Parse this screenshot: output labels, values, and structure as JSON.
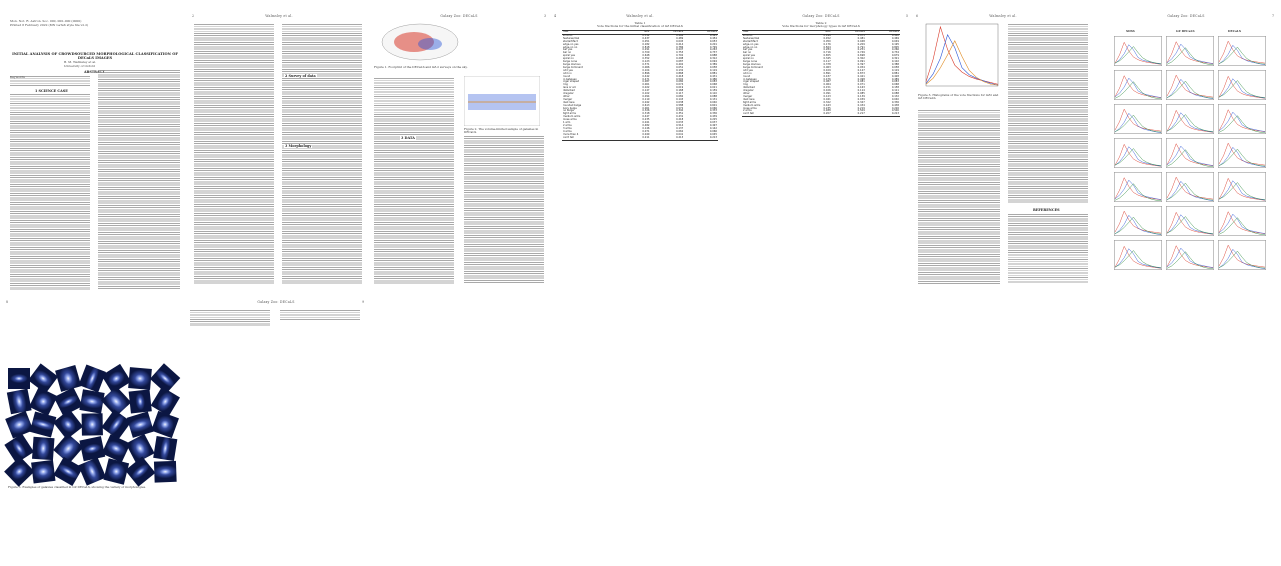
{
  "pages": [
    {
      "header": "",
      "number": "",
      "caption": ""
    },
    {
      "header": "Walmsley et al.",
      "number": "2"
    },
    {
      "header": "Galaxy Zoo: DECaLS",
      "number": "3"
    },
    {
      "header": "Walmsley et al.",
      "number": "4"
    },
    {
      "header": "Galaxy Zoo: DECaLS",
      "number": "5"
    },
    {
      "header": "Walmsley et al.",
      "number": "6"
    },
    {
      "header": "Galaxy Zoo: DECaLS",
      "number": "7"
    },
    {
      "header": "Walmsley et al.",
      "number": "8"
    },
    {
      "header": "Galaxy Zoo: DECaLS",
      "number": "9"
    }
  ],
  "page1": {
    "preprint": "Mon. Not. R. Astron. Soc. 000, 000–000 (0000)",
    "printed": "Printed 6 February 2022 (MN LaTeX style file v2.2)",
    "title": "INITIAL ANALYSIS OF CROWDSOURCED MORPHOLOGICAL CLASSIFICATION OF DECaLS IMAGES",
    "author": "B. M. Walmsley et al.",
    "affiliation": "University of Oxford",
    "abstract_label": "ABSTRACT",
    "keywords_label": "Keywords",
    "section1": "1 SCIENCE CASE"
  },
  "page2": {
    "section2": "2 Survey of data",
    "section3": "3 Morphology",
    "list": [
      "How does the transition between",
      "What is the contribution of",
      "Do the galaxy morphologies change",
      "What about those galaxies"
    ]
  },
  "page3": {
    "fig_caption": "Figure 1. Footprint of the DECaLS and GZ-2 surveys on the sky.",
    "fig2_caption": "Figure 2. The volume-limited sample of galaxies in DECaLS.",
    "section": "3 DATA"
  },
  "table1": {
    "title": "Table 1",
    "subtitle": "Vote fractions for the initial classification of GZ DECaLS",
    "columns": [
      "Task",
      "GZ2",
      "DECaLS",
      "DECaLS"
    ],
    "rows": [
      [
        "smooth",
        "0.512",
        "0.466",
        "0.493"
      ],
      [
        "features/disk",
        "0.437",
        "0.489",
        "0.454"
      ],
      [
        "star/artifact",
        "0.051",
        "0.045",
        "0.053"
      ],
      [
        "edge-on yes",
        "0.182",
        "0.214",
        "0.201"
      ],
      [
        "edge-on no",
        "0.818",
        "0.786",
        "0.799"
      ],
      [
        "bar yes",
        "0.291",
        "0.247",
        "0.263"
      ],
      [
        "bar no",
        "0.709",
        "0.753",
        "0.737"
      ],
      [
        "spiral yes",
        "0.648",
        "0.702",
        "0.688"
      ],
      [
        "spiral no",
        "0.352",
        "0.298",
        "0.312"
      ],
      [
        "bulge none",
        "0.123",
        "0.087",
        "0.094"
      ],
      [
        "bulge obvious",
        "0.371",
        "0.402",
        "0.389"
      ],
      [
        "bulge dominant",
        "0.066",
        "0.051",
        "0.058"
      ],
      [
        "odd yes",
        "0.104",
        "0.132",
        "0.119"
      ],
      [
        "odd no",
        "0.896",
        "0.868",
        "0.881"
      ],
      [
        "round",
        "0.442",
        "0.418",
        "0.431"
      ],
      [
        "in between",
        "0.471",
        "0.502",
        "0.486"
      ],
      [
        "cigar shaped",
        "0.087",
        "0.080",
        "0.083"
      ],
      [
        "ring",
        "0.061",
        "0.074",
        "0.068"
      ],
      [
        "lens or arc",
        "0.022",
        "0.019",
        "0.021"
      ],
      [
        "disturbed",
        "0.147",
        "0.168",
        "0.159"
      ],
      [
        "irregular",
        "0.102",
        "0.117",
        "0.110"
      ],
      [
        "other",
        "0.094",
        "0.082",
        "0.088"
      ],
      [
        "merger",
        "0.119",
        "0.143",
        "0.131"
      ],
      [
        "dust lane",
        "0.042",
        "0.038",
        "0.040"
      ],
      [
        "rounded bulge",
        "0.613",
        "0.588",
        "0.601"
      ],
      [
        "boxy bulge",
        "0.061",
        "0.072",
        "0.066"
      ],
      [
        "no bulge",
        "0.326",
        "0.340",
        "0.333"
      ],
      [
        "tight arms",
        "0.318",
        "0.351",
        "0.336"
      ],
      [
        "medium arms",
        "0.447",
        "0.431",
        "0.439"
      ],
      [
        "loose arms",
        "0.235",
        "0.218",
        "0.225"
      ],
      [
        "1 arm",
        "0.041",
        "0.033",
        "0.037"
      ],
      [
        "2 arms",
        "0.482",
        "0.514",
        "0.497"
      ],
      [
        "3 arms",
        "0.146",
        "0.137",
        "0.142"
      ],
      [
        "4 arms",
        "0.071",
        "0.062",
        "0.066"
      ],
      [
        "more than 4",
        "0.049",
        "0.041",
        "0.045"
      ],
      [
        "can't tell",
        "0.211",
        "0.213",
        "0.213"
      ]
    ],
    "note": "Notes: vote fractions computed for galaxies in both surveys."
  },
  "table2": {
    "title": "Table 2",
    "subtitle": "Vote fractions for morphology types in GZ DECaLS",
    "columns": [
      "Task",
      "GZ2",
      "DECaLS",
      "DECaLS"
    ],
    "rows": [
      [
        "smooth",
        "0.498",
        "0.471",
        "0.482"
      ],
      [
        "features/disk",
        "0.452",
        "0.481",
        "0.469"
      ],
      [
        "star/artifact",
        "0.050",
        "0.048",
        "0.049"
      ],
      [
        "edge-on yes",
        "0.176",
        "0.209",
        "0.195"
      ],
      [
        "edge-on no",
        "0.824",
        "0.791",
        "0.805"
      ],
      [
        "bar yes",
        "0.284",
        "0.251",
        "0.266"
      ],
      [
        "bar no",
        "0.716",
        "0.749",
        "0.734"
      ],
      [
        "spiral yes",
        "0.655",
        "0.698",
        "0.679"
      ],
      [
        "spiral no",
        "0.345",
        "0.302",
        "0.321"
      ],
      [
        "bulge none",
        "0.117",
        "0.091",
        "0.102"
      ],
      [
        "bulge obvious",
        "0.378",
        "0.397",
        "0.388"
      ],
      [
        "bulge dominant",
        "0.063",
        "0.054",
        "0.058"
      ],
      [
        "odd yes",
        "0.109",
        "0.127",
        "0.119"
      ],
      [
        "odd no",
        "0.891",
        "0.873",
        "0.881"
      ],
      [
        "round",
        "0.437",
        "0.421",
        "0.428"
      ],
      [
        "in between",
        "0.476",
        "0.498",
        "0.489"
      ],
      [
        "cigar shaped",
        "0.087",
        "0.081",
        "0.083"
      ],
      [
        "ring",
        "0.064",
        "0.071",
        "0.068"
      ],
      [
        "disturbed",
        "0.151",
        "0.163",
        "0.158"
      ],
      [
        "irregular",
        "0.106",
        "0.114",
        "0.111"
      ],
      [
        "other",
        "0.091",
        "0.085",
        "0.088"
      ],
      [
        "merger",
        "0.123",
        "0.139",
        "0.132"
      ],
      [
        "dust lane",
        "0.041",
        "0.039",
        "0.040"
      ],
      [
        "tight arms",
        "0.322",
        "0.347",
        "0.336"
      ],
      [
        "medium arms",
        "0.443",
        "0.434",
        "0.438"
      ],
      [
        "loose arms",
        "0.235",
        "0.219",
        "0.226"
      ],
      [
        "2 arms",
        "0.488",
        "0.509",
        "0.500"
      ],
      [
        "can't tell",
        "0.207",
        "0.217",
        "0.213"
      ]
    ]
  },
  "page8": {
    "fig_caption": "Figure 3. Histograms of the vote fractions for GZ2 and GZ DECaLS.",
    "references": "REFERENCES"
  },
  "page9": {
    "fig_caption": "Figure 4. Vote fraction distributions for selected questions in GZ2, GZ DECaLS and DECaLS.",
    "panel_titles": [
      "SDSS",
      "GZ DECaLS",
      "DECaLS"
    ]
  },
  "page10": {
    "fig_caption": "Figure 5. Examples of galaxies classified in GZ DECaLS, showing the variety of morphologies."
  },
  "page11": {
    "references": "REFERENCES"
  },
  "chart_data": [
    {
      "type": "line",
      "x": [
        0,
        0.1,
        0.2,
        0.3,
        0.4,
        0.5,
        0.6,
        0.7,
        0.8,
        0.9,
        1.0
      ],
      "series": [
        {
          "name": "",
          "values": [
            0.5,
            3.1,
            6.8,
            4.2,
            2.4,
            1.6,
            1.1,
            0.8,
            0.6,
            0.4,
            0.2
          ]
        },
        {
          "name": "",
          "values": [
            0.3,
            1.4,
            3.2,
            5.9,
            4.4,
            2.1,
            1.3,
            0.9,
            0.6,
            0.3,
            0.1
          ]
        },
        {
          "name": "",
          "values": [
            0.2,
            0.9,
            2.1,
            3.6,
            5.2,
            3.4,
            1.8,
            1.0,
            0.5,
            0.2,
            0.1
          ]
        }
      ],
      "colors": [
        "#d93b2b",
        "#2b56d6",
        "#e08a1f"
      ]
    }
  ],
  "colors": {
    "link": "#2b56d6",
    "red": "#d93b2b",
    "blue": "#2b56d6",
    "orange": "#e08a1f",
    "green": "#2e8b3e"
  }
}
